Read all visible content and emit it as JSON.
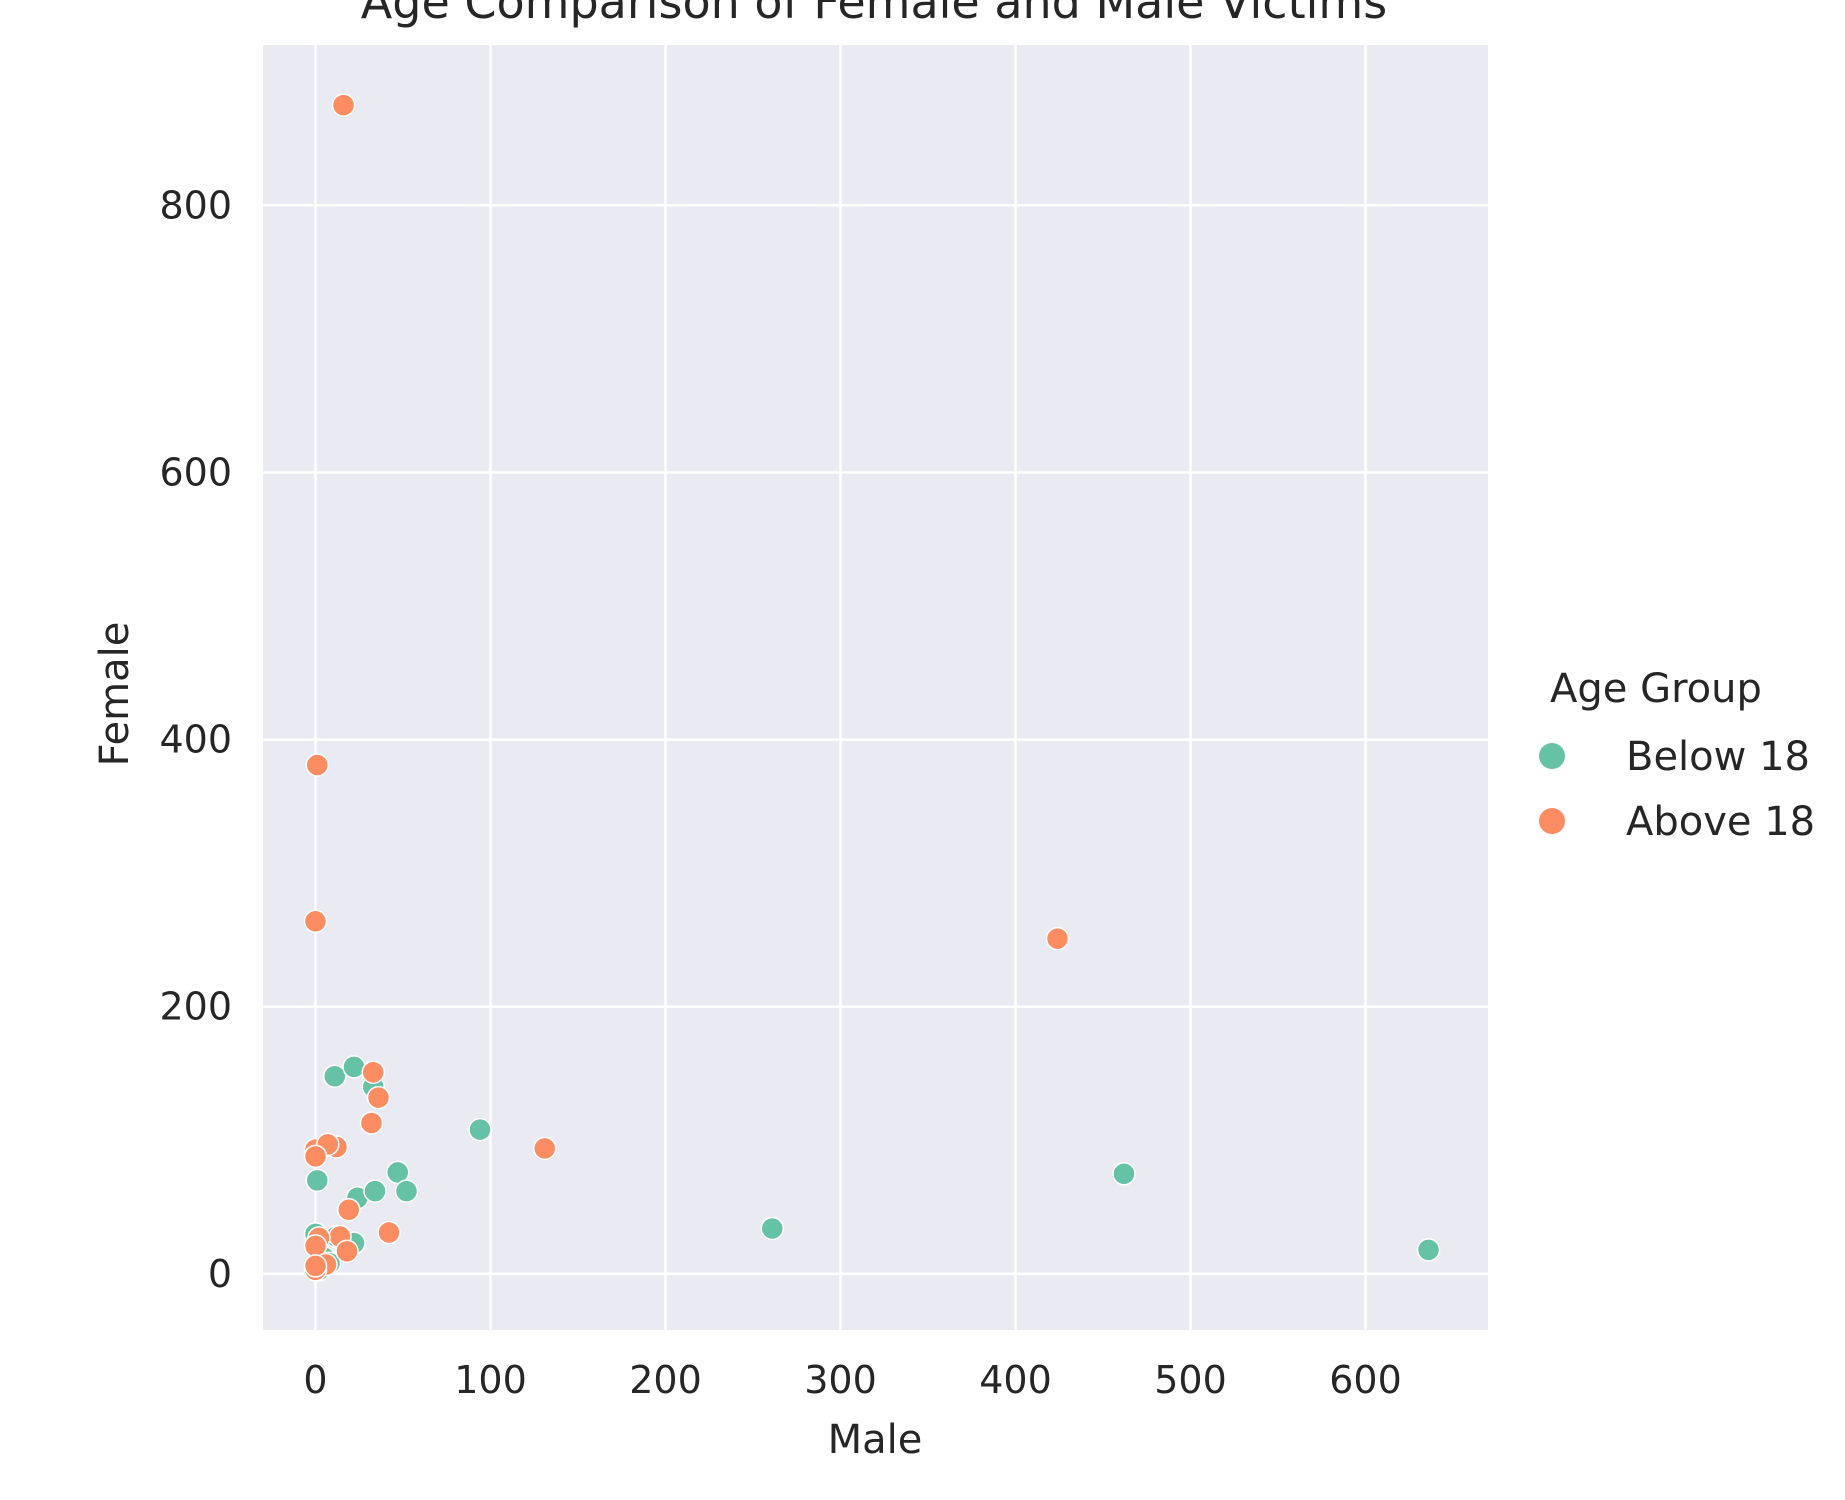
{
  "chart_data": {
    "type": "scatter",
    "title": "Age Comparison of Female and Male Victims",
    "xlabel": "Male",
    "ylabel": "Female",
    "xlim": [
      -30,
      670
    ],
    "ylim": [
      -42,
      920
    ],
    "xticks": [
      0,
      100,
      200,
      300,
      400,
      500,
      600
    ],
    "yticks": [
      0,
      200,
      400,
      600,
      800
    ],
    "grid": true,
    "background": "#eaeaf2",
    "legend": {
      "title": "Age Group",
      "placement": "right"
    },
    "series": [
      {
        "name": "Below 18",
        "color": "#66c2a5",
        "points": [
          [
            0,
            30
          ],
          [
            1,
            70
          ],
          [
            1,
            5
          ],
          [
            2,
            3
          ],
          [
            5,
            12
          ],
          [
            8,
            8
          ],
          [
            11,
            148
          ],
          [
            12,
            28
          ],
          [
            18,
            20
          ],
          [
            22,
            23
          ],
          [
            22,
            155
          ],
          [
            24,
            57
          ],
          [
            33,
            140
          ],
          [
            34,
            62
          ],
          [
            47,
            76
          ],
          [
            52,
            62
          ],
          [
            94,
            108
          ],
          [
            261,
            34
          ],
          [
            462,
            75
          ],
          [
            636,
            18
          ]
        ]
      },
      {
        "name": "Above 18",
        "color": "#fc8d62",
        "points": [
          [
            16,
            875
          ],
          [
            1,
            381
          ],
          [
            0,
            264
          ],
          [
            424,
            251
          ],
          [
            33,
            151
          ],
          [
            36,
            132
          ],
          [
            32,
            113
          ],
          [
            12,
            95
          ],
          [
            0,
            93
          ],
          [
            7,
            97
          ],
          [
            0,
            88
          ],
          [
            131,
            94
          ],
          [
            19,
            48
          ],
          [
            42,
            31
          ],
          [
            14,
            28
          ],
          [
            2,
            27
          ],
          [
            18,
            17
          ],
          [
            0,
            21
          ],
          [
            6,
            7
          ],
          [
            0,
            3
          ],
          [
            0,
            6
          ]
        ]
      }
    ]
  }
}
